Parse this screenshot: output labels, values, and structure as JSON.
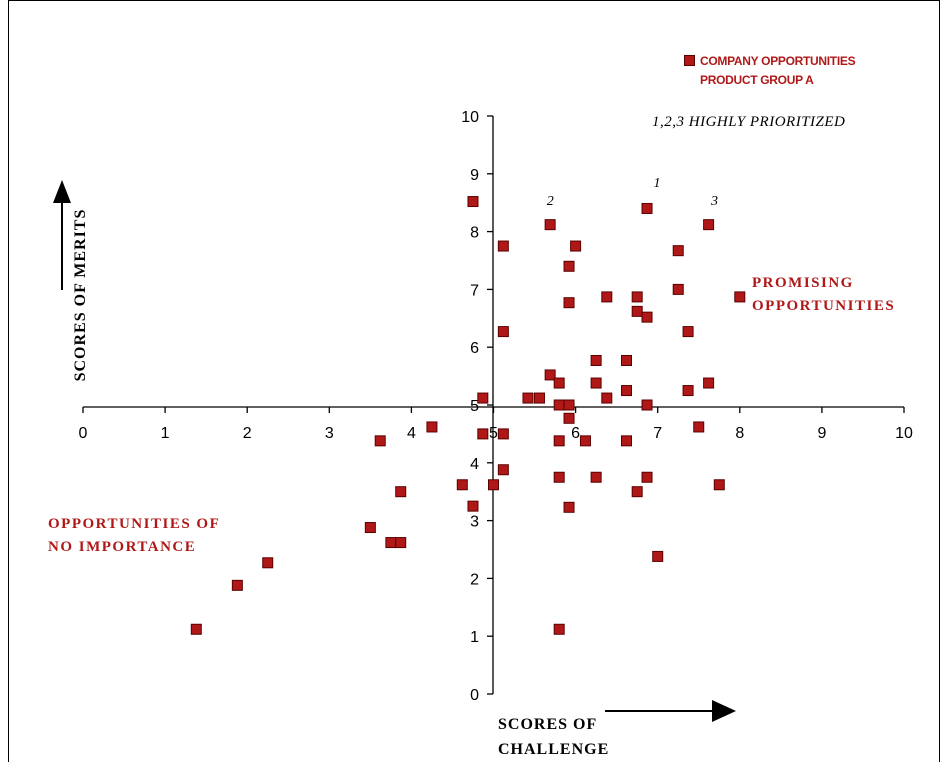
{
  "chart_data": {
    "type": "scatter",
    "title": "",
    "xlabel": "SCORES OF CHALLENGE",
    "ylabel": "SCORES OF MERITS",
    "xlim": [
      0,
      10
    ],
    "ylim": [
      0,
      10
    ],
    "x_ticks": [
      "0",
      "1",
      "2",
      "3",
      "4",
      "5",
      "6",
      "7",
      "8",
      "9",
      "10"
    ],
    "y_ticks": [
      "0",
      "1",
      "2",
      "3",
      "4",
      "5",
      "6",
      "7",
      "8",
      "9",
      "10"
    ],
    "grid": false,
    "legend": {
      "placement": "top-right",
      "lines": [
        "COMPANY OPPORTUNITIES",
        "PRODUCT GROUP A"
      ],
      "color": "#b01818"
    },
    "note": "1,2,3  HIGHLY PRIORITIZED",
    "quadrant_labels": {
      "promising": [
        "PROMISING",
        "OPPORTUNITIES"
      ],
      "no_importance": [
        "OPPORTUNITIES OF",
        "NO IMPORTANCE"
      ]
    },
    "priority_labels": [
      {
        "text": "1",
        "x": 6.9,
        "y": 8.4
      },
      {
        "text": "2",
        "x": 5.6,
        "y": 8.1
      },
      {
        "text": "3",
        "x": 7.6,
        "y": 8.1
      }
    ],
    "series": [
      {
        "name": "COMPANY OPPORTUNITIES PRODUCT GROUP A",
        "color": "#b01818",
        "points": [
          [
            1.38,
            1.12
          ],
          [
            1.88,
            1.88
          ],
          [
            2.25,
            2.27
          ],
          [
            3.5,
            2.88
          ],
          [
            3.75,
            2.62
          ],
          [
            3.87,
            2.62
          ],
          [
            3.62,
            4.38
          ],
          [
            3.87,
            3.5
          ],
          [
            4.25,
            4.62
          ],
          [
            4.62,
            3.62
          ],
          [
            4.87,
            5.12
          ],
          [
            4.87,
            4.5
          ],
          [
            4.75,
            3.25
          ],
          [
            5.0,
            3.62
          ],
          [
            5.12,
            3.88
          ],
          [
            5.12,
            4.5
          ],
          [
            5.12,
            6.27
          ],
          [
            5.12,
            7.75
          ],
          [
            4.75,
            8.52
          ],
          [
            5.42,
            5.12
          ],
          [
            5.56,
            5.12
          ],
          [
            5.69,
            5.52
          ],
          [
            5.69,
            8.12
          ],
          [
            5.8,
            5.38
          ],
          [
            5.8,
            5.0
          ],
          [
            5.8,
            4.38
          ],
          [
            5.8,
            3.75
          ],
          [
            5.8,
            1.12
          ],
          [
            5.92,
            7.4
          ],
          [
            5.92,
            6.77
          ],
          [
            5.92,
            5.0
          ],
          [
            5.92,
            4.77
          ],
          [
            5.92,
            3.23
          ],
          [
            6.0,
            7.75
          ],
          [
            6.12,
            4.38
          ],
          [
            6.25,
            5.77
          ],
          [
            6.25,
            5.38
          ],
          [
            6.25,
            3.75
          ],
          [
            6.38,
            5.12
          ],
          [
            6.38,
            6.87
          ],
          [
            6.62,
            5.77
          ],
          [
            6.62,
            5.25
          ],
          [
            6.62,
            4.38
          ],
          [
            6.75,
            6.87
          ],
          [
            6.75,
            6.62
          ],
          [
            6.75,
            3.5
          ],
          [
            6.87,
            6.52
          ],
          [
            6.87,
            5.0
          ],
          [
            6.87,
            3.75
          ],
          [
            6.87,
            8.4
          ],
          [
            7.0,
            2.38
          ],
          [
            7.25,
            7.67
          ],
          [
            7.25,
            7.0
          ],
          [
            7.37,
            6.27
          ],
          [
            7.37,
            5.25
          ],
          [
            7.5,
            4.62
          ],
          [
            7.62,
            5.38
          ],
          [
            7.62,
            8.12
          ],
          [
            7.75,
            3.62
          ],
          [
            8.0,
            6.87
          ]
        ]
      }
    ]
  }
}
